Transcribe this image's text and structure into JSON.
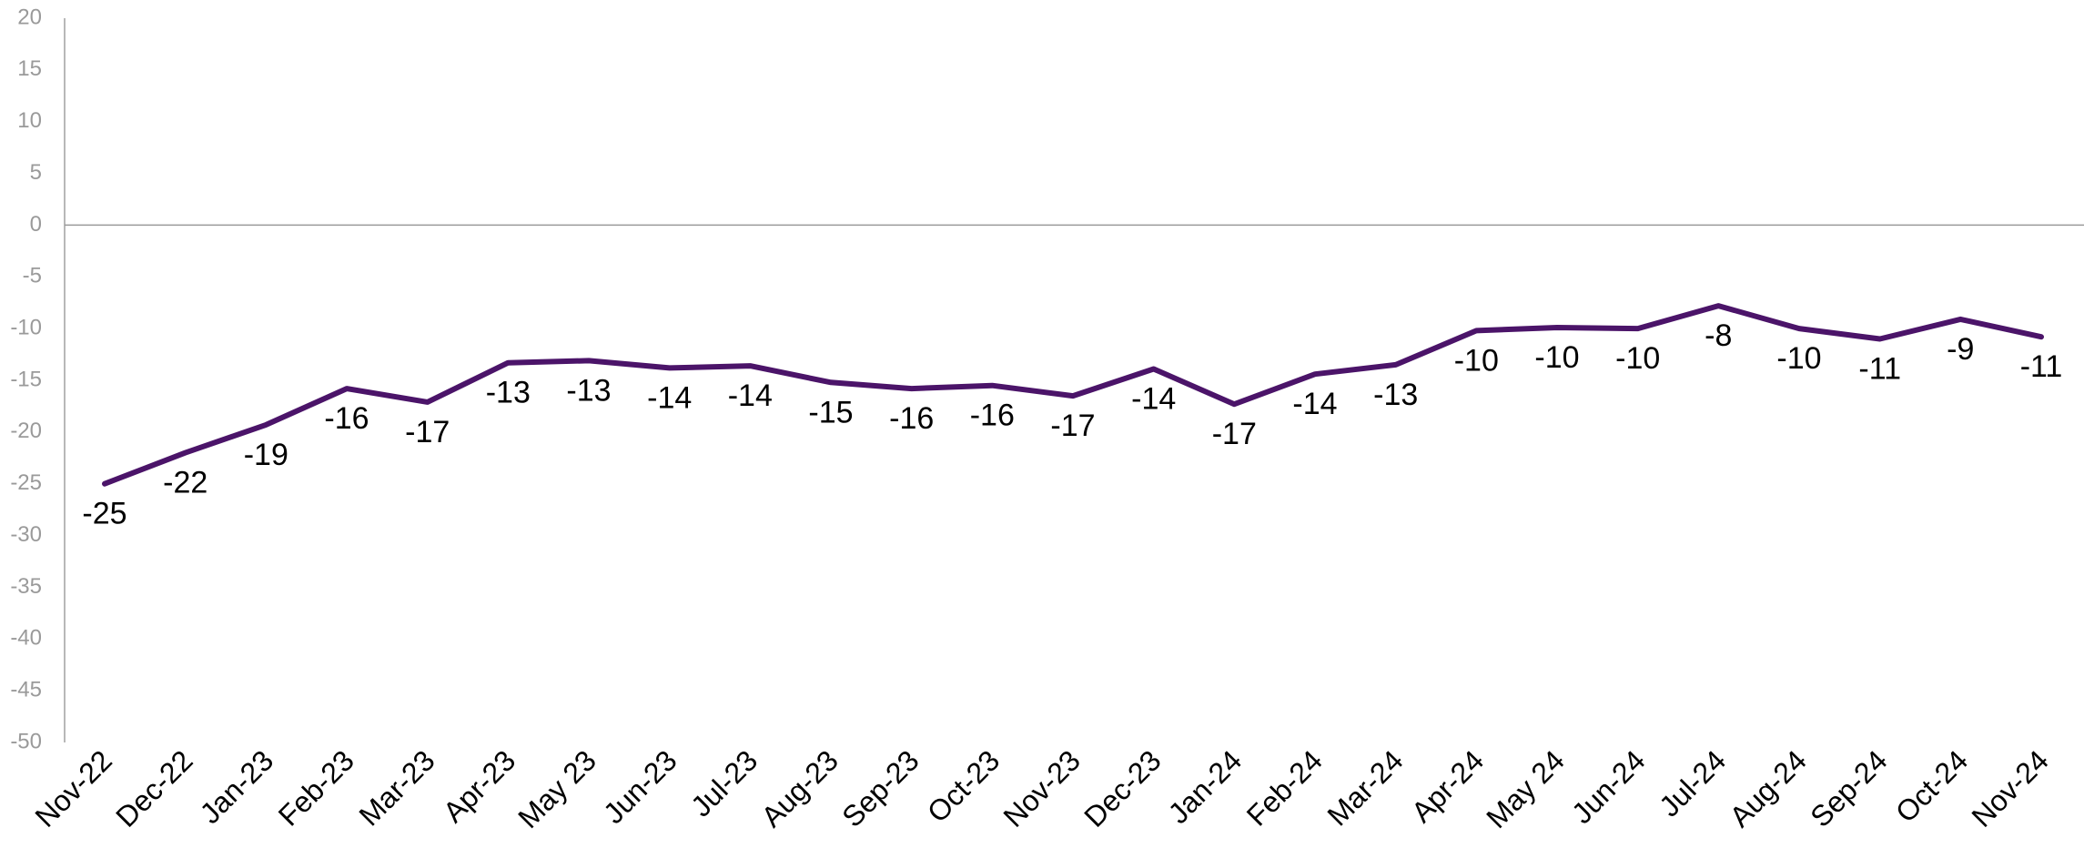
{
  "chart_data": {
    "type": "line",
    "title": "",
    "xlabel": "",
    "ylabel": "",
    "categories": [
      "Nov-22",
      "Dec-22",
      "Jan-23",
      "Feb-23",
      "Mar-23",
      "Apr-23",
      "May 23",
      "Jun-23",
      "Jul-23",
      "Aug-23",
      "Sep-23",
      "Oct-23",
      "Nov-23",
      "Dec-23",
      "Jan-24",
      "Feb-24",
      "Mar-24",
      "Apr-24",
      "May 24",
      "Jun-24",
      "Jul-24",
      "Aug-24",
      "Sep-24",
      "Oct-24",
      "Nov-24"
    ],
    "series": [
      {
        "name": "",
        "color": "#4b1469",
        "values": [
          -25.0,
          -22.0,
          -19.3,
          -15.8,
          -17.1,
          -13.3,
          -13.1,
          -13.8,
          -13.6,
          -15.2,
          -15.8,
          -15.5,
          -16.5,
          -13.9,
          -17.3,
          -14.4,
          -13.5,
          -10.2,
          -9.9,
          -10.0,
          -7.8,
          -10.0,
          -11.0,
          -9.1,
          -10.8
        ],
        "labels": [
          "-25",
          "-22",
          "-19",
          "-16",
          "-17",
          "-13",
          "-13",
          "-14",
          "-14",
          "-15",
          "-16",
          "-16",
          "-17",
          "-14",
          "-17",
          "-14",
          "-13",
          "-10",
          "-10",
          "-10",
          "-8",
          "-10",
          "-11",
          "-9",
          "-11"
        ]
      }
    ],
    "ylim": [
      -50,
      20
    ],
    "yticks": [
      "20",
      "15",
      "10",
      "5",
      "0",
      "-5",
      "-10",
      "-15",
      "-20",
      "-25",
      "-30",
      "-35",
      "-40",
      "-45",
      "-50"
    ],
    "grid": false,
    "zero_line": true,
    "legend": "none"
  }
}
